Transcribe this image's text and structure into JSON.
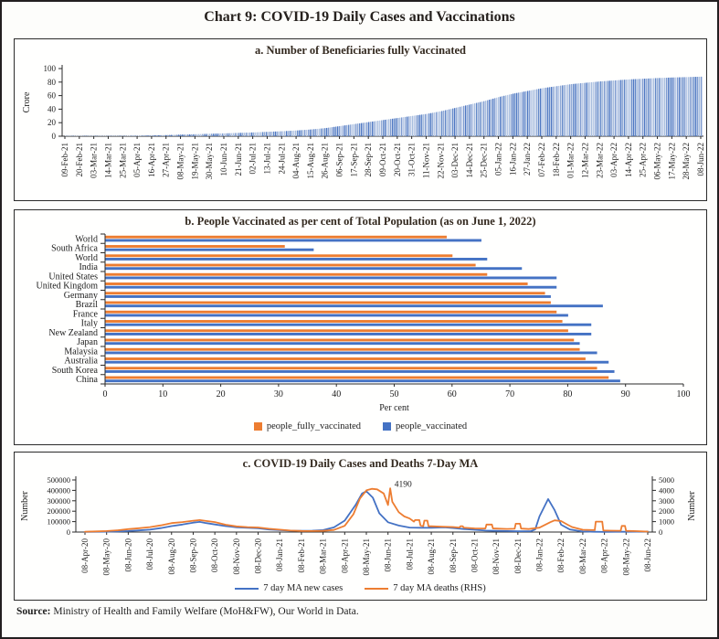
{
  "figure": {
    "title": "Chart 9: COVID-19 Daily Cases and Vaccinations",
    "source_label": "Source:",
    "source_text": "Ministry of Health and Family Welfare (MoH&FW), Our World in Data."
  },
  "colors": {
    "orange": "#ED7D31",
    "blue": "#4472C4",
    "bar_palette": [
      "#a8bede",
      "#8fa9d5",
      "#7e9bd0",
      "#6288c8",
      "#b6c8e6",
      "#4d77c2"
    ]
  },
  "chart_data": [
    {
      "type": "bar",
      "title": "a. Number of Beneficiaries fully Vaccinated",
      "ylabel": "Crore",
      "ylim": [
        0,
        100
      ],
      "yticks": [
        0,
        20,
        40,
        60,
        80,
        100
      ],
      "categories": [
        "09-Feb-21",
        "20-Feb-21",
        "03-Mar-21",
        "14-Mar-21",
        "25-Mar-21",
        "05-Apr-21",
        "16-Apr-21",
        "27-Apr-21",
        "08-May-21",
        "19-May-21",
        "30-May-21",
        "10-Jun-21",
        "21-Jun-21",
        "02-Jul-21",
        "13-Jul-21",
        "24-Jul-21",
        "04-Aug-21",
        "15-Aug-21",
        "26-Aug-21",
        "06-Sep-21",
        "17-Sep-21",
        "28-Sep-21",
        "09-Oct-21",
        "20-Oct-21",
        "31-Oct-21",
        "11-Nov-21",
        "22-Nov-21",
        "03-Dec-21",
        "14-Dec-21",
        "25-Dec-21",
        "05-Jan-22",
        "16-Jan-22",
        "27-Jan-22",
        "07-Feb-22",
        "18-Feb-22",
        "01-Mar-22",
        "12-Mar-22",
        "23-Mar-22",
        "03-Apr-22",
        "14-Apr-22",
        "25-Apr-22",
        "06-May-22",
        "17-May-22",
        "28-May-22",
        "08-Jun-22"
      ],
      "values": [
        0.1,
        0.15,
        0.2,
        0.3,
        0.5,
        0.8,
        1.2,
        1.7,
        2.4,
        3.0,
        3.6,
        4.2,
        4.9,
        5.6,
        6.5,
        7.4,
        8.5,
        10,
        12,
        15,
        18,
        21,
        24,
        27,
        30,
        33,
        37,
        42,
        47,
        52,
        58,
        63,
        67,
        71,
        74,
        77,
        79,
        81,
        82.5,
        84,
        85,
        86,
        86.8,
        87.4,
        88
      ]
    },
    {
      "type": "bar",
      "orientation": "horizontal",
      "title": "b. People Vaccinated as per cent of Total Population (as on June 1, 2022)",
      "xlabel": "Per cent",
      "xlim": [
        0,
        100
      ],
      "xticks": [
        0,
        10,
        20,
        30,
        40,
        50,
        60,
        70,
        80,
        90,
        100
      ],
      "categories": [
        "World",
        "South Africa",
        "World",
        "India",
        "United States",
        "United Kingdom",
        "Germany",
        "Brazil",
        "France",
        "Italy",
        "New Zealand",
        "Japan",
        "Malaysia",
        "Australia",
        "South Korea",
        "China"
      ],
      "series": [
        {
          "name": "people_fully_vaccinated",
          "color": "#ED7D31",
          "values": [
            59,
            31,
            60,
            64,
            66,
            73,
            76,
            77,
            78,
            79,
            80,
            81,
            82,
            83,
            85,
            87
          ]
        },
        {
          "name": "people_vaccinated",
          "color": "#4472C4",
          "values": [
            65,
            36,
            66,
            72,
            78,
            78,
            77,
            86,
            80,
            84,
            84,
            82,
            85,
            87,
            88,
            89
          ]
        }
      ],
      "legend_position": "bottom"
    },
    {
      "type": "line",
      "title": "c. COVID-19 Daily Cases and Deaths 7-Day MA",
      "ylabel_left": "Number",
      "ylabel_right": "Number",
      "ylim_left": [
        0,
        500000
      ],
      "ylim_right": [
        0,
        5000
      ],
      "yticks_left": [
        0,
        100000,
        200000,
        300000,
        400000,
        500000
      ],
      "yticks_right": [
        0,
        1000,
        2000,
        3000,
        4000,
        5000
      ],
      "x_tick_labels": [
        "08-Apr-20",
        "08-May-20",
        "08-Jun-20",
        "08-Jul-20",
        "08-Aug-20",
        "08-Sep-20",
        "08-Oct-20",
        "08-Nov-20",
        "08-Dec-20",
        "08-Jan-21",
        "08-Feb-21",
        "08-Mar-21",
        "08-Apr-21",
        "08-May-21",
        "08-Jun-21",
        "08-Jul-21",
        "08-Aug-21",
        "08-Sep-21",
        "08-Oct-21",
        "08-Nov-21",
        "08-Dec-21",
        "08-Jan-22",
        "08-Feb-22",
        "08-Mar-22",
        "08-Apr-22",
        "08-May-22",
        "08-Jun-22"
      ],
      "annotation": {
        "text": "4190",
        "x_index": 14.3,
        "value": 4600
      },
      "series": [
        {
          "name": "7 day MA new cases",
          "color": "#4472C4",
          "axis": "left",
          "points": [
            [
              0,
              1200
            ],
            [
              0.5,
              2200
            ],
            [
              1,
              3900
            ],
            [
              1.5,
              6500
            ],
            [
              2,
              10000
            ],
            [
              2.5,
              15500
            ],
            [
              3,
              23000
            ],
            [
              3.5,
              38000
            ],
            [
              4,
              57000
            ],
            [
              4.5,
              72000
            ],
            [
              5,
              90000
            ],
            [
              5.3,
              97000
            ],
            [
              5.6,
              86000
            ],
            [
              6,
              73000
            ],
            [
              6.5,
              57000
            ],
            [
              7,
              46000
            ],
            [
              7.5,
              40000
            ],
            [
              8,
              36000
            ],
            [
              8.5,
              25000
            ],
            [
              9,
              18000
            ],
            [
              9.5,
              13000
            ],
            [
              10,
              11500
            ],
            [
              10.5,
              13500
            ],
            [
              11,
              18000
            ],
            [
              11.5,
              45000
            ],
            [
              12,
              110000
            ],
            [
              12.5,
              260000
            ],
            [
              12.8,
              370000
            ],
            [
              13,
              391000
            ],
            [
              13.3,
              330000
            ],
            [
              13.6,
              180000
            ],
            [
              14,
              94000
            ],
            [
              14.5,
              62000
            ],
            [
              15,
              43000
            ],
            [
              15.5,
              41000
            ],
            [
              16,
              40000
            ],
            [
              16.6,
              46000
            ],
            [
              17,
              39000
            ],
            [
              17.5,
              29000
            ],
            [
              18,
              22000
            ],
            [
              18.5,
              14000
            ],
            [
              19,
              11800
            ],
            [
              19.5,
              9500
            ],
            [
              20,
              8000
            ],
            [
              20.6,
              9000
            ],
            [
              20.8,
              25000
            ],
            [
              21,
              150000
            ],
            [
              21.4,
              317000
            ],
            [
              21.7,
              210000
            ],
            [
              22,
              70000
            ],
            [
              22.4,
              25000
            ],
            [
              23,
              5500
            ],
            [
              23.5,
              2500
            ],
            [
              24,
              1100
            ],
            [
              24.5,
              2500
            ],
            [
              25,
              2900
            ],
            [
              25.5,
              3600
            ],
            [
              26,
              5200
            ]
          ]
        },
        {
          "name": "7 day MA deaths (RHS)",
          "color": "#ED7D31",
          "axis": "right",
          "points": [
            [
              0,
              35
            ],
            [
              0.5,
              60
            ],
            [
              1,
              100
            ],
            [
              1.5,
              170
            ],
            [
              2,
              280
            ],
            [
              2.5,
              370
            ],
            [
              3,
              470
            ],
            [
              3.5,
              640
            ],
            [
              4,
              860
            ],
            [
              4.5,
              960
            ],
            [
              5,
              1090
            ],
            [
              5.3,
              1150
            ],
            [
              5.6,
              1060
            ],
            [
              6,
              960
            ],
            [
              6.5,
              700
            ],
            [
              7,
              540
            ],
            [
              7.5,
              470
            ],
            [
              8,
              440
            ],
            [
              8.5,
              320
            ],
            [
              9,
              230
            ],
            [
              9.5,
              140
            ],
            [
              10,
              105
            ],
            [
              10.5,
              100
            ],
            [
              11,
              115
            ],
            [
              11.5,
              200
            ],
            [
              12,
              600
            ],
            [
              12.4,
              1700
            ],
            [
              12.7,
              3200
            ],
            [
              13,
              4000
            ],
            [
              13.25,
              4150
            ],
            [
              13.5,
              4100
            ],
            [
              13.8,
              3700
            ],
            [
              14,
              2600
            ],
            [
              14.1,
              4190
            ],
            [
              14.2,
              2900
            ],
            [
              14.5,
              1900
            ],
            [
              14.75,
              1500
            ],
            [
              15,
              1300
            ],
            [
              15.2,
              1000
            ],
            [
              15.25,
              1150
            ],
            [
              15.45,
              1150
            ],
            [
              15.5,
              640
            ],
            [
              15.63,
              560
            ],
            [
              15.68,
              1100
            ],
            [
              15.82,
              1100
            ],
            [
              15.87,
              560
            ],
            [
              16,
              550
            ],
            [
              16.5,
              520
            ],
            [
              17,
              480
            ],
            [
              17.3,
              430
            ],
            [
              17.35,
              560
            ],
            [
              17.45,
              560
            ],
            [
              17.5,
              420
            ],
            [
              18,
              350
            ],
            [
              18.5,
              340
            ],
            [
              18.55,
              720
            ],
            [
              18.8,
              720
            ],
            [
              18.85,
              340
            ],
            [
              19,
              330
            ],
            [
              19.5,
              300
            ],
            [
              19.85,
              320
            ],
            [
              19.9,
              800
            ],
            [
              20.1,
              800
            ],
            [
              20.15,
              330
            ],
            [
              20.5,
              290
            ],
            [
              21,
              420
            ],
            [
              21.5,
              950
            ],
            [
              21.7,
              1120
            ],
            [
              22,
              1050
            ],
            [
              22.3,
              700
            ],
            [
              22.5,
              480
            ],
            [
              23,
              220
            ],
            [
              23.55,
              180
            ],
            [
              23.6,
              1000
            ],
            [
              23.9,
              1000
            ],
            [
              23.95,
              150
            ],
            [
              24.3,
              130
            ],
            [
              24.75,
              120
            ],
            [
              24.8,
              590
            ],
            [
              24.95,
              590
            ],
            [
              25,
              110
            ],
            [
              25.5,
              90
            ],
            [
              26,
              40
            ]
          ]
        }
      ]
    }
  ]
}
